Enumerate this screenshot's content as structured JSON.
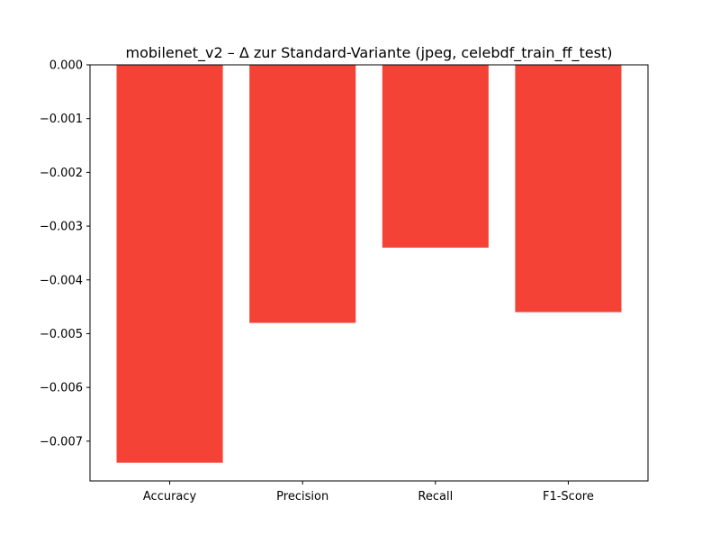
{
  "chart_data": {
    "type": "bar",
    "title": "mobilenet_v2 – Δ zur Standard-Variante (jpeg, celebdf_train_ff_test)",
    "categories": [
      "Accuracy",
      "Precision",
      "Recall",
      "F1-Score"
    ],
    "values": [
      -0.0074,
      -0.0048,
      -0.0034,
      -0.0046
    ],
    "xlabel": "",
    "ylabel": "",
    "ylim": [
      -0.00774,
      0.0
    ],
    "yticks": [
      0.0,
      -0.001,
      -0.002,
      -0.003,
      -0.004,
      -0.005,
      -0.006,
      -0.007
    ],
    "ytick_labels": [
      "0.000",
      "−0.001",
      "−0.002",
      "−0.003",
      "−0.004",
      "−0.005",
      "−0.006",
      "−0.007"
    ],
    "grid": false,
    "legend": "none",
    "bar_color": "#f44336"
  }
}
